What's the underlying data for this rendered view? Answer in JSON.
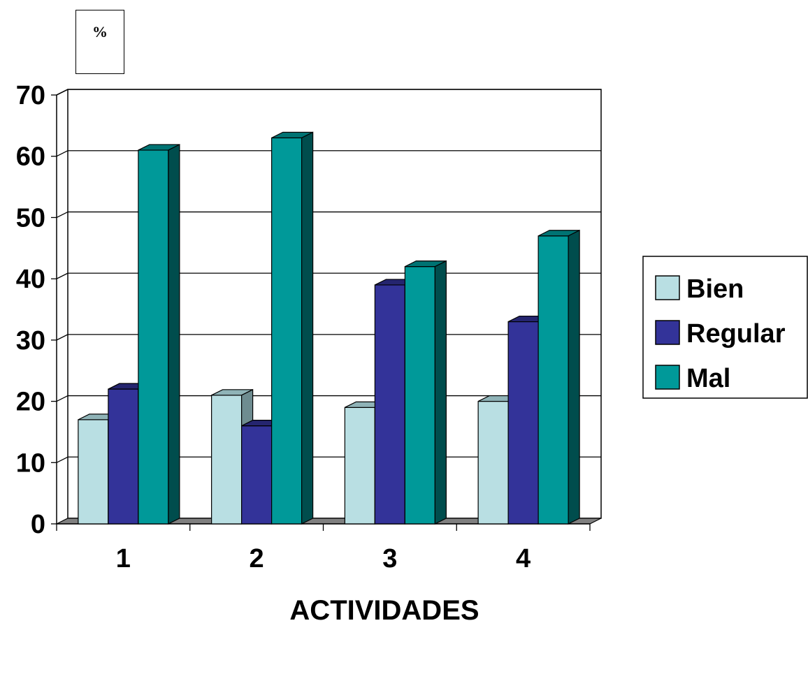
{
  "chart_data": {
    "type": "bar",
    "ylabel": "%",
    "xlabel": "ACTIVIDADES",
    "categories": [
      "1",
      "2",
      "3",
      "4"
    ],
    "series": [
      {
        "name": "Bien",
        "values": [
          17,
          21,
          19,
          20
        ],
        "color": "#b9dfe3",
        "side_color": "#6e8c90",
        "top_color": "#8fb3b7"
      },
      {
        "name": "Regular",
        "values": [
          22,
          16,
          39,
          33
        ],
        "color": "#333399",
        "side_color": "#1a1a4d",
        "top_color": "#25256f"
      },
      {
        "name": "Mal",
        "values": [
          61,
          63,
          42,
          47
        ],
        "color": "#009999",
        "side_color": "#004d4d",
        "top_color": "#007373"
      }
    ],
    "ylim": [
      0,
      70
    ],
    "yticks": [
      "0",
      "10",
      "20",
      "30",
      "40",
      "50",
      "60",
      "70"
    ],
    "grid": true,
    "legend_position": "right"
  }
}
